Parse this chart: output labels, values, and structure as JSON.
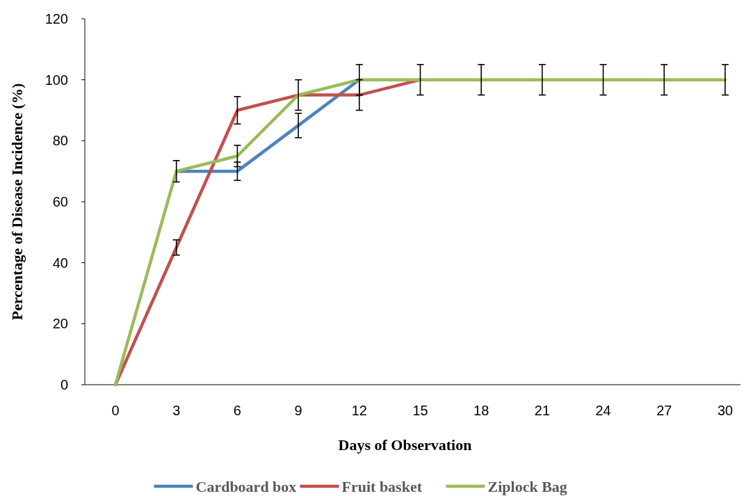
{
  "chart_data": {
    "type": "line",
    "xlabel": "Days of Observation",
    "ylabel": "Percentage of Disease Incidence (%)",
    "categories": [
      "0",
      "3",
      "6",
      "9",
      "12",
      "15",
      "18",
      "21",
      "24",
      "27",
      "30"
    ],
    "ylim": [
      0,
      120
    ],
    "yticks": [
      0,
      20,
      40,
      60,
      80,
      100,
      120
    ],
    "grid": false,
    "legend": "bottom",
    "marker": "none",
    "series": [
      {
        "name": "Cardboard box",
        "color": "#4f81bd",
        "values": [
          null,
          70,
          70,
          85,
          100,
          null,
          null,
          null,
          null,
          null,
          null
        ],
        "errors": [
          null,
          null,
          3,
          4,
          null,
          null,
          null,
          null,
          null,
          null,
          null
        ]
      },
      {
        "name": "Fruit basket",
        "color": "#c0504d",
        "values": [
          0,
          45,
          90,
          95,
          95,
          100,
          null,
          null,
          null,
          null,
          null
        ],
        "errors": [
          null,
          2.5,
          4.5,
          null,
          5,
          null,
          null,
          null,
          null,
          null,
          null
        ]
      },
      {
        "name": "Ziplock Bag",
        "color": "#9bbb59",
        "values": [
          0,
          70,
          75,
          95,
          100,
          100,
          100,
          100,
          100,
          100,
          100
        ],
        "errors": [
          null,
          3.5,
          3.5,
          5,
          5,
          5,
          5,
          5,
          5,
          5,
          5
        ]
      }
    ]
  }
}
